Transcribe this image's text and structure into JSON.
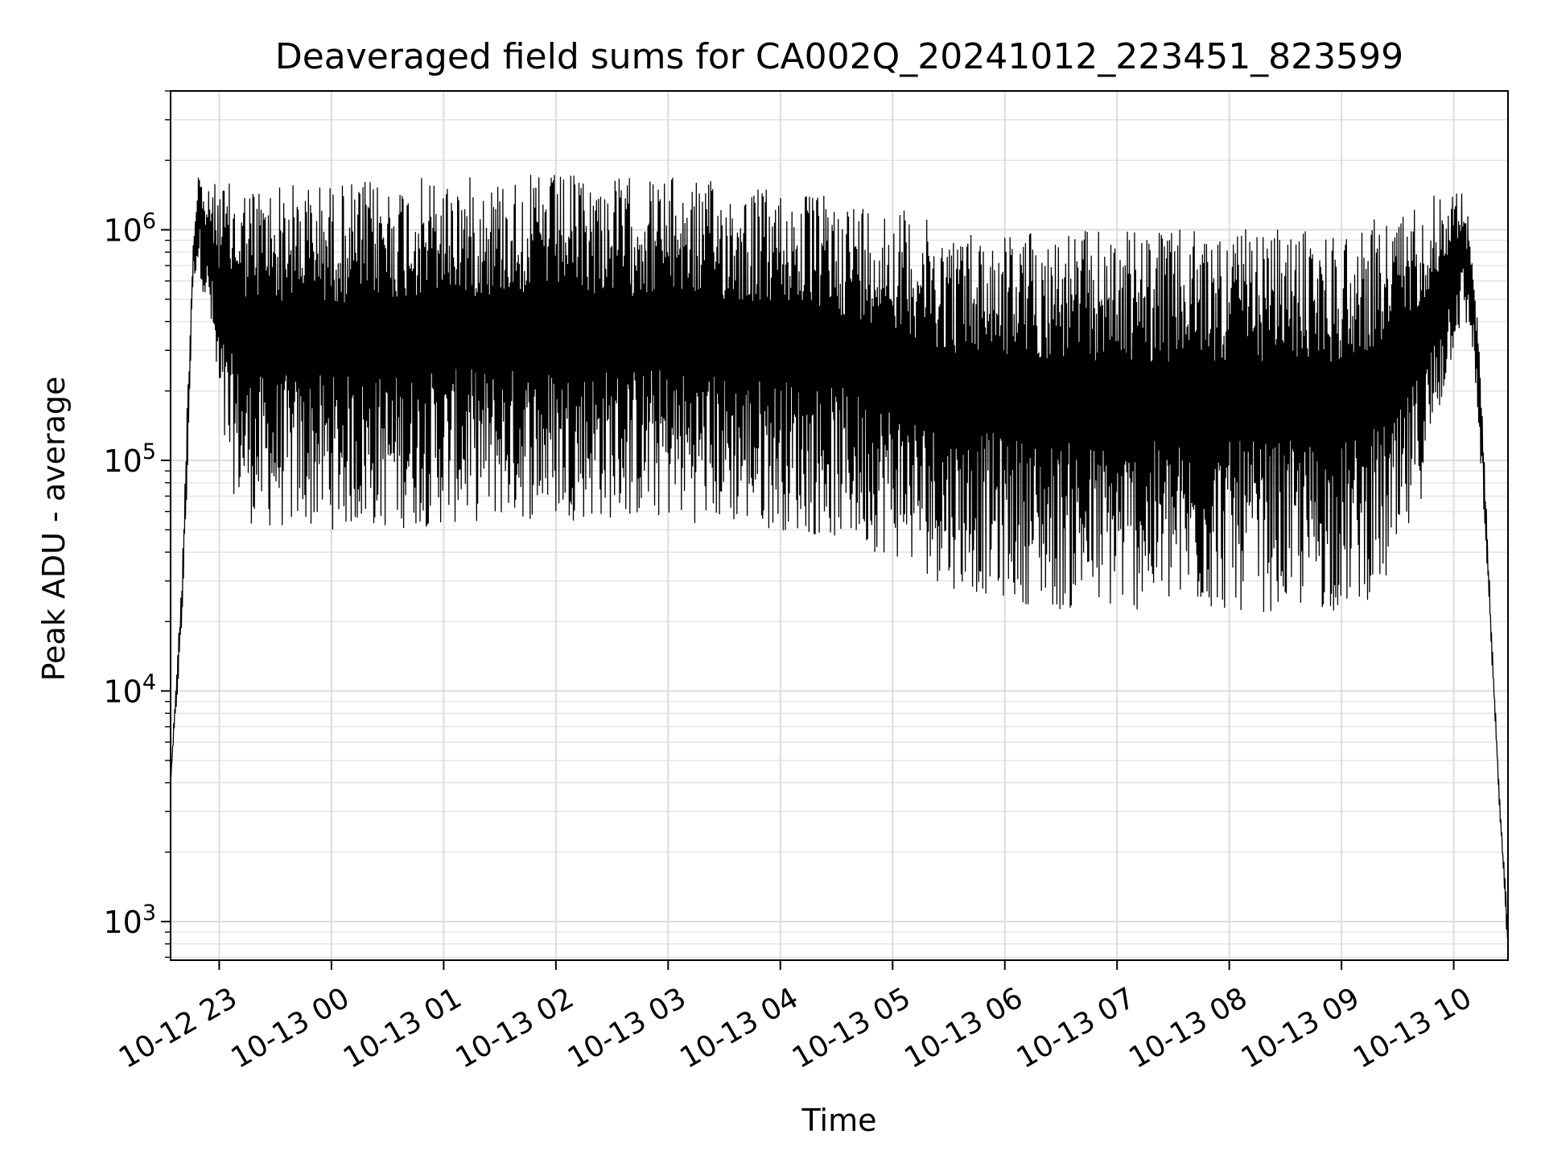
{
  "chart_data": {
    "type": "line",
    "title": "Deaveraged field sums for CA002Q_20241012_223451_823599",
    "xlabel": "Time",
    "ylabel": "Peak ADU - average",
    "yscale": "log",
    "ylim": [
      680,
      4000000
    ],
    "xlim": [
      "2024-10-12 22:34",
      "2024-10-13 10:29"
    ],
    "grid": true,
    "line_color": "#000000",
    "x_ticks": [
      {
        "t": "2024-10-12 23:00",
        "label": "10-12 23"
      },
      {
        "t": "2024-10-13 00:00",
        "label": "10-13 00"
      },
      {
        "t": "2024-10-13 01:00",
        "label": "10-13 01"
      },
      {
        "t": "2024-10-13 02:00",
        "label": "10-13 02"
      },
      {
        "t": "2024-10-13 03:00",
        "label": "10-13 03"
      },
      {
        "t": "2024-10-13 04:00",
        "label": "10-13 04"
      },
      {
        "t": "2024-10-13 05:00",
        "label": "10-13 05"
      },
      {
        "t": "2024-10-13 06:00",
        "label": "10-13 06"
      },
      {
        "t": "2024-10-13 07:00",
        "label": "10-13 07"
      },
      {
        "t": "2024-10-13 08:00",
        "label": "10-13 08"
      },
      {
        "t": "2024-10-13 09:00",
        "label": "10-13 09"
      },
      {
        "t": "2024-10-13 10:00",
        "label": "10-13 10"
      }
    ],
    "y_ticks": [
      {
        "value": 1000,
        "base": "10",
        "exp": "3"
      },
      {
        "value": 10000,
        "base": "10",
        "exp": "4"
      },
      {
        "value": 100000,
        "base": "10",
        "exp": "5"
      },
      {
        "value": 1000000,
        "base": "10",
        "exp": "6"
      }
    ],
    "series": [
      {
        "x": [
          "2024-10-12 22:34",
          "2024-10-12 22:37",
          "2024-10-12 22:40",
          "2024-10-12 22:43",
          "2024-10-12 22:46",
          "2024-10-12 22:49",
          "2024-10-12 22:52",
          "2024-10-12 22:55",
          "2024-10-12 22:58",
          "2024-10-12 23:01",
          "2024-10-12 23:05",
          "2024-10-12 23:10",
          "2024-10-12 23:15",
          "2024-10-12 23:20",
          "2024-10-12 23:30",
          "2024-10-12 23:45",
          "2024-10-13 00:00",
          "2024-10-13 00:30",
          "2024-10-13 01:00",
          "2024-10-13 01:30",
          "2024-10-13 02:00",
          "2024-10-13 02:30",
          "2024-10-13 03:00",
          "2024-10-13 03:30",
          "2024-10-13 04:00",
          "2024-10-13 04:30",
          "2024-10-13 05:00",
          "2024-10-13 05:30",
          "2024-10-13 06:00",
          "2024-10-13 06:30",
          "2024-10-13 07:00",
          "2024-10-13 07:30",
          "2024-10-13 08:00",
          "2024-10-13 08:30",
          "2024-10-13 09:00",
          "2024-10-13 09:15",
          "2024-10-13 09:30",
          "2024-10-13 09:45",
          "2024-10-13 10:00",
          "2024-10-13 10:05",
          "2024-10-13 10:10",
          "2024-10-13 10:15",
          "2024-10-13 10:20",
          "2024-10-13 10:25",
          "2024-10-13 10:29"
        ],
        "upper": [
          4000,
          12000,
          30000,
          200000,
          900000,
          2000000,
          1400000,
          1500000,
          1600000,
          1600000,
          1600000,
          1500000,
          1600000,
          1600000,
          1600000,
          1600000,
          1600000,
          1650000,
          1700000,
          1700000,
          1750000,
          1700000,
          1700000,
          1600000,
          1500000,
          1400000,
          1300000,
          1000000,
          1000000,
          1000000,
          1000000,
          1000000,
          1000000,
          1000000,
          1000000,
          1100000,
          1200000,
          1400000,
          1500000,
          1500000,
          900000,
          200000,
          20000,
          3000,
          1000
        ],
        "lower": [
          4000,
          8000,
          18000,
          80000,
          600000,
          700000,
          500000,
          400000,
          200000,
          110000,
          80000,
          65000,
          55000,
          50000,
          50000,
          50000,
          50000,
          50000,
          52000,
          55000,
          55000,
          55000,
          55000,
          52000,
          50000,
          45000,
          38000,
          28000,
          25000,
          22000,
          22000,
          22000,
          22000,
          22000,
          22000,
          25000,
          30000,
          80000,
          300000,
          400000,
          300000,
          80000,
          15000,
          2500,
          700
        ]
      }
    ]
  }
}
